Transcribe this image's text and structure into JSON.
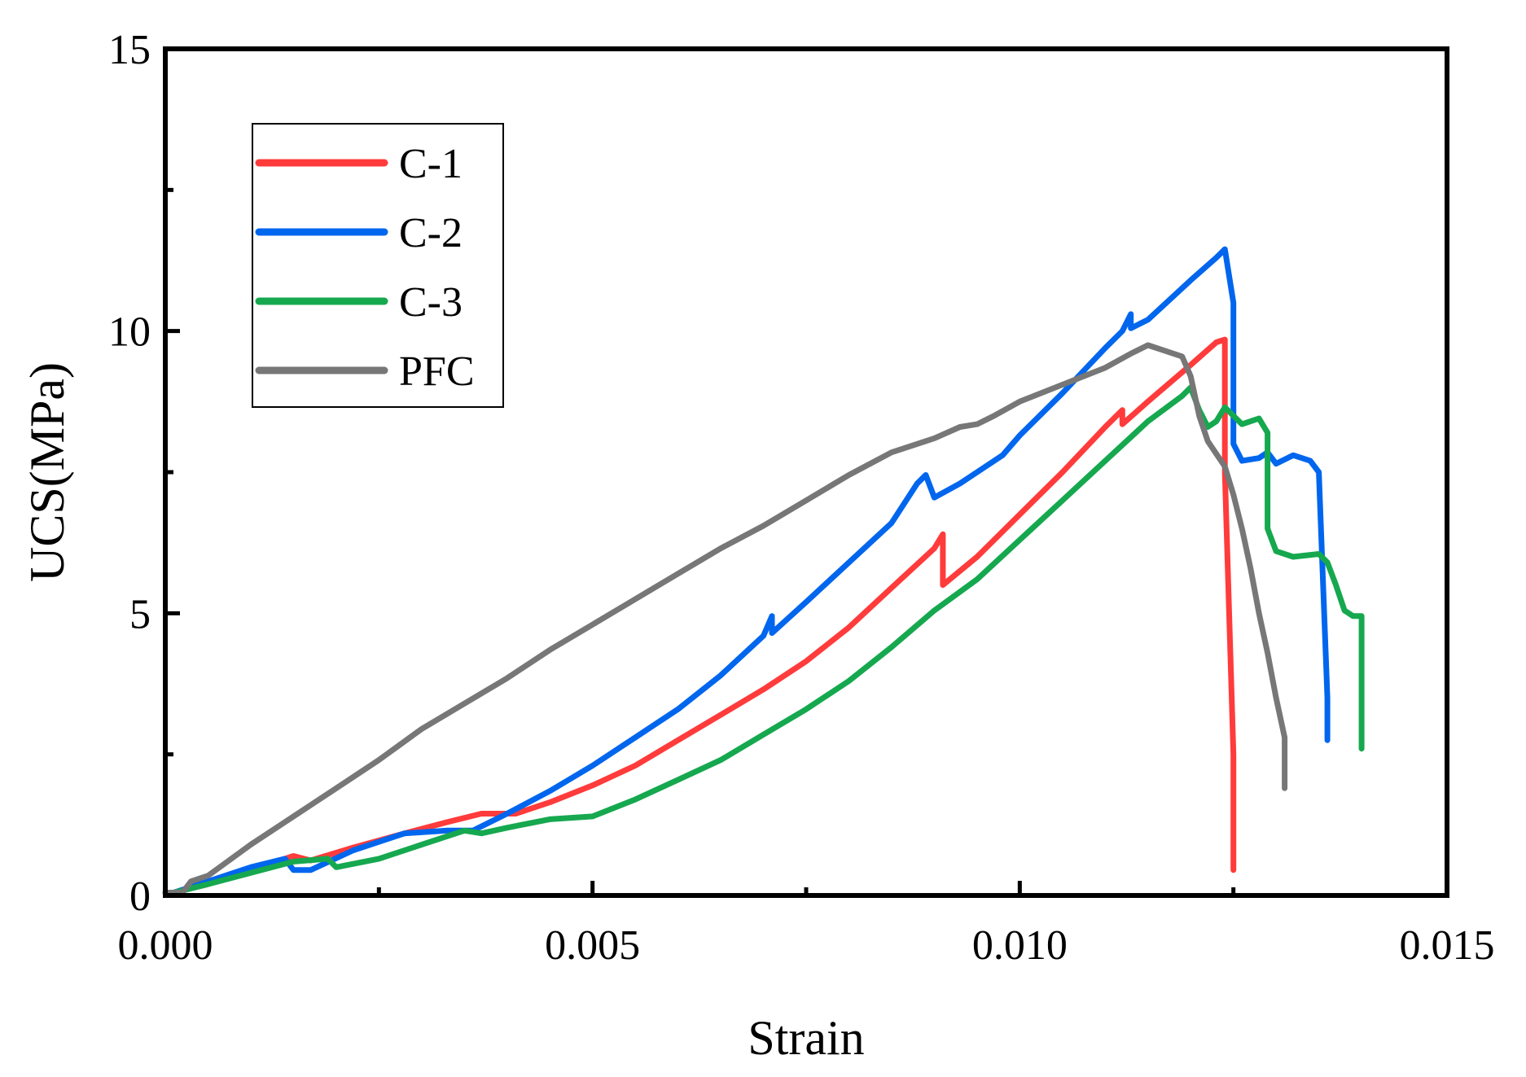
{
  "chart_data": {
    "type": "line",
    "title": "",
    "xlabel": "Strain",
    "ylabel": "UCS(MPa)",
    "xlim": [
      0,
      0.015
    ],
    "ylim": [
      0,
      15
    ],
    "xticks": [
      0,
      0.005,
      0.01,
      0.015
    ],
    "xtick_labels": [
      "0.000",
      "0.005",
      "0.010",
      "0.015"
    ],
    "yticks": [
      0,
      5,
      10,
      15
    ],
    "ytick_labels": [
      "0",
      "5",
      "10",
      "15"
    ],
    "x_minor_ticks": [
      0.0025,
      0.0075,
      0.0125
    ],
    "y_minor_ticks": [
      2.5,
      7.5,
      12.5
    ],
    "grid": false,
    "legend_position": "top-left",
    "series": [
      {
        "name": "C-1",
        "color": "#ff3b3b",
        "points": [
          [
            0.0001,
            0.05
          ],
          [
            0.0005,
            0.2
          ],
          [
            0.001,
            0.45
          ],
          [
            0.0015,
            0.7
          ],
          [
            0.0017,
            0.62
          ],
          [
            0.0022,
            0.85
          ],
          [
            0.0028,
            1.1
          ],
          [
            0.0033,
            1.3
          ],
          [
            0.0037,
            1.45
          ],
          [
            0.0041,
            1.45
          ],
          [
            0.0045,
            1.65
          ],
          [
            0.005,
            1.95
          ],
          [
            0.0055,
            2.3
          ],
          [
            0.006,
            2.75
          ],
          [
            0.0065,
            3.2
          ],
          [
            0.007,
            3.65
          ],
          [
            0.0075,
            4.15
          ],
          [
            0.008,
            4.75
          ],
          [
            0.0085,
            5.45
          ],
          [
            0.009,
            6.15
          ],
          [
            0.0091,
            6.4
          ],
          [
            0.0091,
            5.5
          ],
          [
            0.0095,
            6.0
          ],
          [
            0.01,
            6.75
          ],
          [
            0.0105,
            7.5
          ],
          [
            0.011,
            8.3
          ],
          [
            0.0112,
            8.6
          ],
          [
            0.0112,
            8.35
          ],
          [
            0.0115,
            8.75
          ],
          [
            0.012,
            9.4
          ],
          [
            0.0123,
            9.8
          ],
          [
            0.0124,
            9.85
          ],
          [
            0.0124,
            7.5
          ],
          [
            0.0125,
            2.5
          ],
          [
            0.0125,
            0.45
          ]
        ]
      },
      {
        "name": "C-2",
        "color": "#0066ee",
        "points": [
          [
            0.0001,
            0.05
          ],
          [
            0.0005,
            0.25
          ],
          [
            0.001,
            0.5
          ],
          [
            0.0014,
            0.65
          ],
          [
            0.0015,
            0.45
          ],
          [
            0.0017,
            0.45
          ],
          [
            0.0022,
            0.8
          ],
          [
            0.0028,
            1.1
          ],
          [
            0.0033,
            1.15
          ],
          [
            0.0036,
            1.15
          ],
          [
            0.004,
            1.45
          ],
          [
            0.0045,
            1.85
          ],
          [
            0.005,
            2.3
          ],
          [
            0.0055,
            2.8
          ],
          [
            0.006,
            3.3
          ],
          [
            0.0065,
            3.9
          ],
          [
            0.007,
            4.6
          ],
          [
            0.0071,
            4.95
          ],
          [
            0.0071,
            4.65
          ],
          [
            0.0075,
            5.2
          ],
          [
            0.008,
            5.9
          ],
          [
            0.0085,
            6.6
          ],
          [
            0.0088,
            7.3
          ],
          [
            0.0089,
            7.45
          ],
          [
            0.009,
            7.05
          ],
          [
            0.0093,
            7.3
          ],
          [
            0.0095,
            7.5
          ],
          [
            0.0098,
            7.8
          ],
          [
            0.01,
            8.15
          ],
          [
            0.0105,
            8.9
          ],
          [
            0.011,
            9.7
          ],
          [
            0.0112,
            10.0
          ],
          [
            0.0113,
            10.3
          ],
          [
            0.0113,
            10.05
          ],
          [
            0.0115,
            10.2
          ],
          [
            0.012,
            10.9
          ],
          [
            0.0123,
            11.3
          ],
          [
            0.0124,
            11.45
          ],
          [
            0.0125,
            10.5
          ],
          [
            0.0125,
            8.0
          ],
          [
            0.0126,
            7.7
          ],
          [
            0.0128,
            7.75
          ],
          [
            0.0129,
            7.85
          ],
          [
            0.013,
            7.65
          ],
          [
            0.0132,
            7.8
          ],
          [
            0.0134,
            7.7
          ],
          [
            0.0135,
            7.5
          ],
          [
            0.0136,
            3.5
          ],
          [
            0.0136,
            2.75
          ]
        ]
      },
      {
        "name": "C-3",
        "color": "#16a84f",
        "points": [
          [
            0.0001,
            0.05
          ],
          [
            0.0005,
            0.2
          ],
          [
            0.001,
            0.4
          ],
          [
            0.0015,
            0.6
          ],
          [
            0.0019,
            0.65
          ],
          [
            0.002,
            0.5
          ],
          [
            0.0025,
            0.65
          ],
          [
            0.003,
            0.9
          ],
          [
            0.0035,
            1.15
          ],
          [
            0.0037,
            1.1
          ],
          [
            0.004,
            1.2
          ],
          [
            0.0045,
            1.35
          ],
          [
            0.005,
            1.4
          ],
          [
            0.0055,
            1.7
          ],
          [
            0.006,
            2.05
          ],
          [
            0.0065,
            2.4
          ],
          [
            0.007,
            2.85
          ],
          [
            0.0075,
            3.3
          ],
          [
            0.008,
            3.8
          ],
          [
            0.0085,
            4.4
          ],
          [
            0.009,
            5.05
          ],
          [
            0.0095,
            5.6
          ],
          [
            0.01,
            6.3
          ],
          [
            0.0105,
            7.0
          ],
          [
            0.011,
            7.7
          ],
          [
            0.0115,
            8.4
          ],
          [
            0.0119,
            8.85
          ],
          [
            0.012,
            9.0
          ],
          [
            0.0121,
            8.6
          ],
          [
            0.0122,
            8.3
          ],
          [
            0.0123,
            8.4
          ],
          [
            0.0124,
            8.65
          ],
          [
            0.0126,
            8.35
          ],
          [
            0.0128,
            8.45
          ],
          [
            0.0129,
            8.2
          ],
          [
            0.0129,
            6.5
          ],
          [
            0.013,
            6.1
          ],
          [
            0.0132,
            6.0
          ],
          [
            0.0135,
            6.05
          ],
          [
            0.0136,
            5.9
          ],
          [
            0.0137,
            5.5
          ],
          [
            0.0138,
            5.05
          ],
          [
            0.0139,
            4.95
          ],
          [
            0.014,
            4.95
          ],
          [
            0.014,
            3.2
          ],
          [
            0.014,
            2.6
          ]
        ]
      },
      {
        "name": "PFC",
        "color": "#777777",
        "points": [
          [
            0.0,
            0.05
          ],
          [
            0.0002,
            0.05
          ],
          [
            0.0003,
            0.25
          ],
          [
            0.0005,
            0.35
          ],
          [
            0.001,
            0.9
          ],
          [
            0.0015,
            1.4
          ],
          [
            0.002,
            1.9
          ],
          [
            0.0025,
            2.4
          ],
          [
            0.003,
            2.95
          ],
          [
            0.0035,
            3.4
          ],
          [
            0.004,
            3.85
          ],
          [
            0.0045,
            4.35
          ],
          [
            0.005,
            4.8
          ],
          [
            0.0055,
            5.25
          ],
          [
            0.006,
            5.7
          ],
          [
            0.0065,
            6.15
          ],
          [
            0.007,
            6.55
          ],
          [
            0.0075,
            7.0
          ],
          [
            0.008,
            7.45
          ],
          [
            0.0085,
            7.85
          ],
          [
            0.009,
            8.1
          ],
          [
            0.0093,
            8.3
          ],
          [
            0.0095,
            8.35
          ],
          [
            0.0097,
            8.5
          ],
          [
            0.01,
            8.75
          ],
          [
            0.0105,
            9.05
          ],
          [
            0.011,
            9.35
          ],
          [
            0.0113,
            9.6
          ],
          [
            0.0115,
            9.75
          ],
          [
            0.0117,
            9.65
          ],
          [
            0.0119,
            9.55
          ],
          [
            0.012,
            9.2
          ],
          [
            0.0121,
            8.5
          ],
          [
            0.0122,
            8.05
          ],
          [
            0.0124,
            7.6
          ],
          [
            0.0125,
            7.1
          ],
          [
            0.0126,
            6.5
          ],
          [
            0.0127,
            5.8
          ],
          [
            0.0128,
            5.0
          ],
          [
            0.0129,
            4.3
          ],
          [
            0.013,
            3.5
          ],
          [
            0.0131,
            2.8
          ],
          [
            0.0131,
            2.2
          ],
          [
            0.0131,
            1.9
          ]
        ]
      }
    ]
  }
}
